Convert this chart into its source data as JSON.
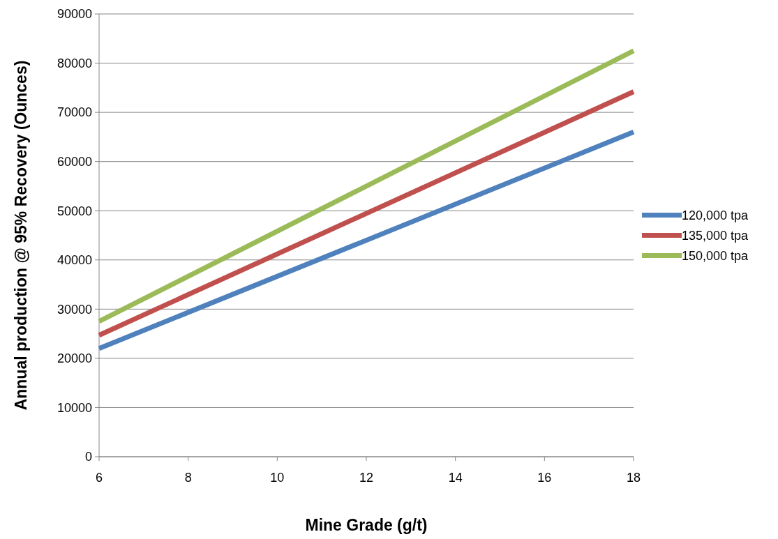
{
  "chart_data": {
    "type": "line",
    "xlabel": "Mine Grade (g/t)",
    "ylabel": "Annual production @ 95% Recovery (Ounces)",
    "x": [
      6,
      18
    ],
    "series": [
      {
        "name": "120,000 tpa",
        "color": "#4f81bd",
        "values": [
          22000,
          66000
        ]
      },
      {
        "name": "135,000 tpa",
        "color": "#c0504d",
        "values": [
          24700,
          74200
        ]
      },
      {
        "name": "150,000 tpa",
        "color": "#9bbb59",
        "values": [
          27500,
          82500
        ]
      }
    ],
    "xlim": [
      6,
      18
    ],
    "xticks": [
      6,
      8,
      10,
      12,
      14,
      16,
      18
    ],
    "ylim": [
      0,
      90000
    ],
    "yticks": [
      0,
      10000,
      20000,
      30000,
      40000,
      50000,
      60000,
      70000,
      80000,
      90000
    ],
    "grid": "y",
    "legend": "right",
    "marker": "none",
    "line_style": "solid"
  }
}
